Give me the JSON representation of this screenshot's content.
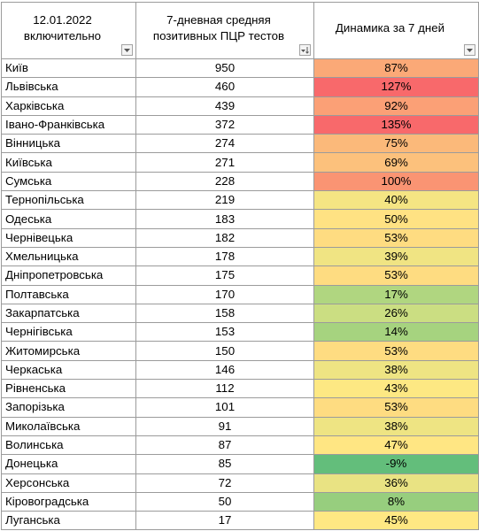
{
  "headers": {
    "col1": [
      "12.01.2022",
      "включительно"
    ],
    "col2": [
      "7-дневная средняя",
      "позитивных ПЦР тестов"
    ],
    "col3": [
      "Динамика за 7 дней"
    ]
  },
  "icons": {
    "col1": "dropdown-arrow-icon",
    "col2": "sort-descending-filter-icon",
    "col3": "dropdown-arrow-icon"
  },
  "colors": {
    "red": "#f8696b",
    "orange": "#fbaa77",
    "yellow": "#ffeb84",
    "light_green": "#c7dd81",
    "green": "#85c77d",
    "dark_green": "#63be7b"
  },
  "rows": [
    {
      "region": "Київ",
      "value": "950",
      "dynamics": "87%",
      "color": "#fba977"
    },
    {
      "region": "Львівська",
      "value": "460",
      "dynamics": "127%",
      "color": "#f8696b"
    },
    {
      "region": "Харківська",
      "value": "439",
      "dynamics": "92%",
      "color": "#fba076"
    },
    {
      "region": "Івано-Франківська",
      "value": "372",
      "dynamics": "135%",
      "color": "#f8696b"
    },
    {
      "region": "Вінницька",
      "value": "274",
      "dynamics": "75%",
      "color": "#fbb97a"
    },
    {
      "region": "Київська",
      "value": "271",
      "dynamics": "69%",
      "color": "#fcc17c"
    },
    {
      "region": "Сумська",
      "value": "228",
      "dynamics": "100%",
      "color": "#fa9473"
    },
    {
      "region": "Тернопільська",
      "value": "219",
      "dynamics": "40%",
      "color": "#f5e583"
    },
    {
      "region": "Одеська",
      "value": "183",
      "dynamics": "50%",
      "color": "#ffe283"
    },
    {
      "region": "Чернівецька",
      "value": "182",
      "dynamics": "53%",
      "color": "#fedc81"
    },
    {
      "region": "Хмельницька",
      "value": "178",
      "dynamics": "39%",
      "color": "#f0e483"
    },
    {
      "region": "Дніпропетровська",
      "value": "175",
      "dynamics": "53%",
      "color": "#fedc81"
    },
    {
      "region": "Полтавська",
      "value": "170",
      "dynamics": "17%",
      "color": "#b0d680"
    },
    {
      "region": "Закарпатська",
      "value": "158",
      "dynamics": "26%",
      "color": "#cbde82"
    },
    {
      "region": "Чернігівська",
      "value": "153",
      "dynamics": "14%",
      "color": "#a6d37f"
    },
    {
      "region": "Житомирська",
      "value": "150",
      "dynamics": "53%",
      "color": "#fedc81"
    },
    {
      "region": "Черкаська",
      "value": "146",
      "dynamics": "38%",
      "color": "#eee483"
    },
    {
      "region": "Рівненська",
      "value": "112",
      "dynamics": "43%",
      "color": "#fde883"
    },
    {
      "region": "Запорізька",
      "value": "101",
      "dynamics": "53%",
      "color": "#fedc81"
    },
    {
      "region": "Миколаївська",
      "value": "91",
      "dynamics": "38%",
      "color": "#eee483"
    },
    {
      "region": "Волинська",
      "value": "87",
      "dynamics": "47%",
      "color": "#ffe683"
    },
    {
      "region": "Донецька",
      "value": "85",
      "dynamics": "-9%",
      "color": "#63be7b"
    },
    {
      "region": "Херсонська",
      "value": "72",
      "dynamics": "36%",
      "color": "#e9e383"
    },
    {
      "region": "Кіровоградська",
      "value": "50",
      "dynamics": "8%",
      "color": "#97ce7e"
    },
    {
      "region": "Луганська",
      "value": "17",
      "dynamics": "45%",
      "color": "#ffe883"
    }
  ]
}
